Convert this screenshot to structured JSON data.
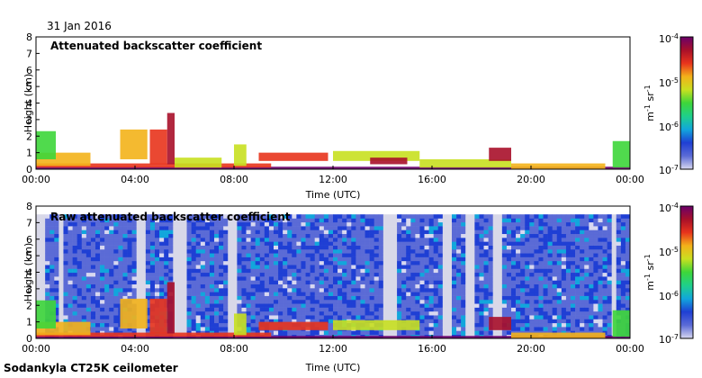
{
  "date_label": "31 Jan 2016",
  "footer": "Sodankyla CT25K ceilometer",
  "colors": {
    "cmap": [
      "#d8d8f0",
      "#5b6bd6",
      "#1f3fd4",
      "#11a6dc",
      "#1fd08a",
      "#3dd63a",
      "#c8e020",
      "#f3b21a",
      "#e8341c",
      "#a8102a",
      "#6a006a"
    ],
    "bad_data": "#d8d8e8",
    "axis": "#000000"
  },
  "chart_data": [
    {
      "type": "heatmap",
      "title": "Attenuated backscatter coefficient",
      "xlabel": "Time (UTC)",
      "ylabel": "Height (km)",
      "x_ticks": [
        "00:00",
        "04:00",
        "08:00",
        "12:00",
        "16:00",
        "20:00",
        "00:00"
      ],
      "y_ticks": [
        "0",
        "1",
        "2",
        "3",
        "4",
        "5",
        "6",
        "7",
        "8"
      ],
      "xlim": [
        0,
        24
      ],
      "ylim": [
        0,
        8
      ],
      "colorbar": {
        "ticks": [
          "10^-4",
          "10^-5",
          "10^-6",
          "10^-7"
        ],
        "label": "m^-1 sr^-1",
        "range": [
          -7,
          -4
        ],
        "scale": "log"
      },
      "background_noise": false,
      "layers": [
        {
          "start": 0.0,
          "end": 24.0,
          "base": 0.0,
          "top": 0.15,
          "level": 0.95
        },
        {
          "start": 0.0,
          "end": 9.5,
          "base": 0.1,
          "top": 0.35,
          "level": 0.8
        },
        {
          "start": 0.0,
          "end": 2.2,
          "base": 0.2,
          "top": 1.0,
          "level": 0.65
        },
        {
          "start": 0.0,
          "end": 0.8,
          "base": 0.6,
          "top": 2.3,
          "level": 0.45
        },
        {
          "start": 3.4,
          "end": 4.5,
          "base": 0.6,
          "top": 2.4,
          "level": 0.7
        },
        {
          "start": 4.6,
          "end": 5.3,
          "base": 0.3,
          "top": 2.4,
          "level": 0.8
        },
        {
          "start": 5.3,
          "end": 5.6,
          "base": 0.3,
          "top": 3.4,
          "level": 0.85
        },
        {
          "start": 5.6,
          "end": 7.5,
          "base": 0.1,
          "top": 0.7,
          "level": 0.55
        },
        {
          "start": 8.0,
          "end": 8.5,
          "base": 0.2,
          "top": 1.5,
          "level": 0.6
        },
        {
          "start": 9.0,
          "end": 11.8,
          "base": 0.5,
          "top": 1.0,
          "level": 0.75
        },
        {
          "start": 12.0,
          "end": 15.5,
          "base": 0.5,
          "top": 1.1,
          "level": 0.6
        },
        {
          "start": 13.5,
          "end": 15.0,
          "base": 0.3,
          "top": 0.7,
          "level": 0.9
        },
        {
          "start": 15.5,
          "end": 19.2,
          "base": 0.1,
          "top": 0.6,
          "level": 0.55
        },
        {
          "start": 18.3,
          "end": 19.2,
          "base": 0.5,
          "top": 1.3,
          "level": 0.85
        },
        {
          "start": 19.2,
          "end": 23.0,
          "base": 0.0,
          "top": 0.35,
          "level": 0.7
        },
        {
          "start": 23.3,
          "end": 24.0,
          "base": 0.1,
          "top": 1.7,
          "level": 0.5
        }
      ]
    },
    {
      "type": "heatmap",
      "title": "Raw attenuated backscatter coefficient",
      "xlabel": "Time (UTC)",
      "ylabel": "Height (km)",
      "x_ticks": [
        "00:00",
        "04:00",
        "08:00",
        "12:00",
        "16:00",
        "20:00",
        "00:00"
      ],
      "y_ticks": [
        "0",
        "1",
        "2",
        "3",
        "4",
        "5",
        "6",
        "7",
        "8"
      ],
      "xlim": [
        0,
        24
      ],
      "ylim": [
        0,
        8
      ],
      "colorbar": {
        "ticks": [
          "10^-4",
          "10^-5",
          "10^-6",
          "10^-7"
        ],
        "label": "m^-1 sr^-1",
        "range": [
          -7,
          -4
        ],
        "scale": "log"
      },
      "background_noise": true,
      "noise_top": 7.5,
      "grey_intervals": [
        [
          0.0,
          0.4
        ],
        [
          1.0,
          1.2
        ],
        [
          4.0,
          4.5
        ],
        [
          5.5,
          6.0
        ],
        [
          7.8,
          8.2
        ],
        [
          14.1,
          14.6
        ],
        [
          16.5,
          16.8
        ],
        [
          17.3,
          17.8
        ],
        [
          18.5,
          18.9
        ],
        [
          23.2,
          23.5
        ]
      ],
      "layers": [
        {
          "start": 0.0,
          "end": 24.0,
          "base": 0.0,
          "top": 0.15,
          "level": 0.95
        },
        {
          "start": 0.0,
          "end": 9.5,
          "base": 0.1,
          "top": 0.35,
          "level": 0.8
        },
        {
          "start": 0.0,
          "end": 2.2,
          "base": 0.2,
          "top": 1.0,
          "level": 0.65
        },
        {
          "start": 0.0,
          "end": 0.8,
          "base": 0.6,
          "top": 2.3,
          "level": 0.45
        },
        {
          "start": 3.4,
          "end": 4.5,
          "base": 0.6,
          "top": 2.4,
          "level": 0.7
        },
        {
          "start": 4.6,
          "end": 5.3,
          "base": 0.3,
          "top": 2.4,
          "level": 0.8
        },
        {
          "start": 5.3,
          "end": 5.6,
          "base": 0.3,
          "top": 3.4,
          "level": 0.85
        },
        {
          "start": 8.0,
          "end": 8.5,
          "base": 0.2,
          "top": 1.5,
          "level": 0.6
        },
        {
          "start": 9.0,
          "end": 11.8,
          "base": 0.5,
          "top": 1.0,
          "level": 0.75
        },
        {
          "start": 12.0,
          "end": 15.5,
          "base": 0.5,
          "top": 1.1,
          "level": 0.6
        },
        {
          "start": 18.3,
          "end": 19.2,
          "base": 0.5,
          "top": 1.3,
          "level": 0.85
        },
        {
          "start": 19.2,
          "end": 23.0,
          "base": 0.0,
          "top": 0.35,
          "level": 0.7
        },
        {
          "start": 23.3,
          "end": 24.0,
          "base": 0.1,
          "top": 1.7,
          "level": 0.5
        }
      ]
    }
  ]
}
